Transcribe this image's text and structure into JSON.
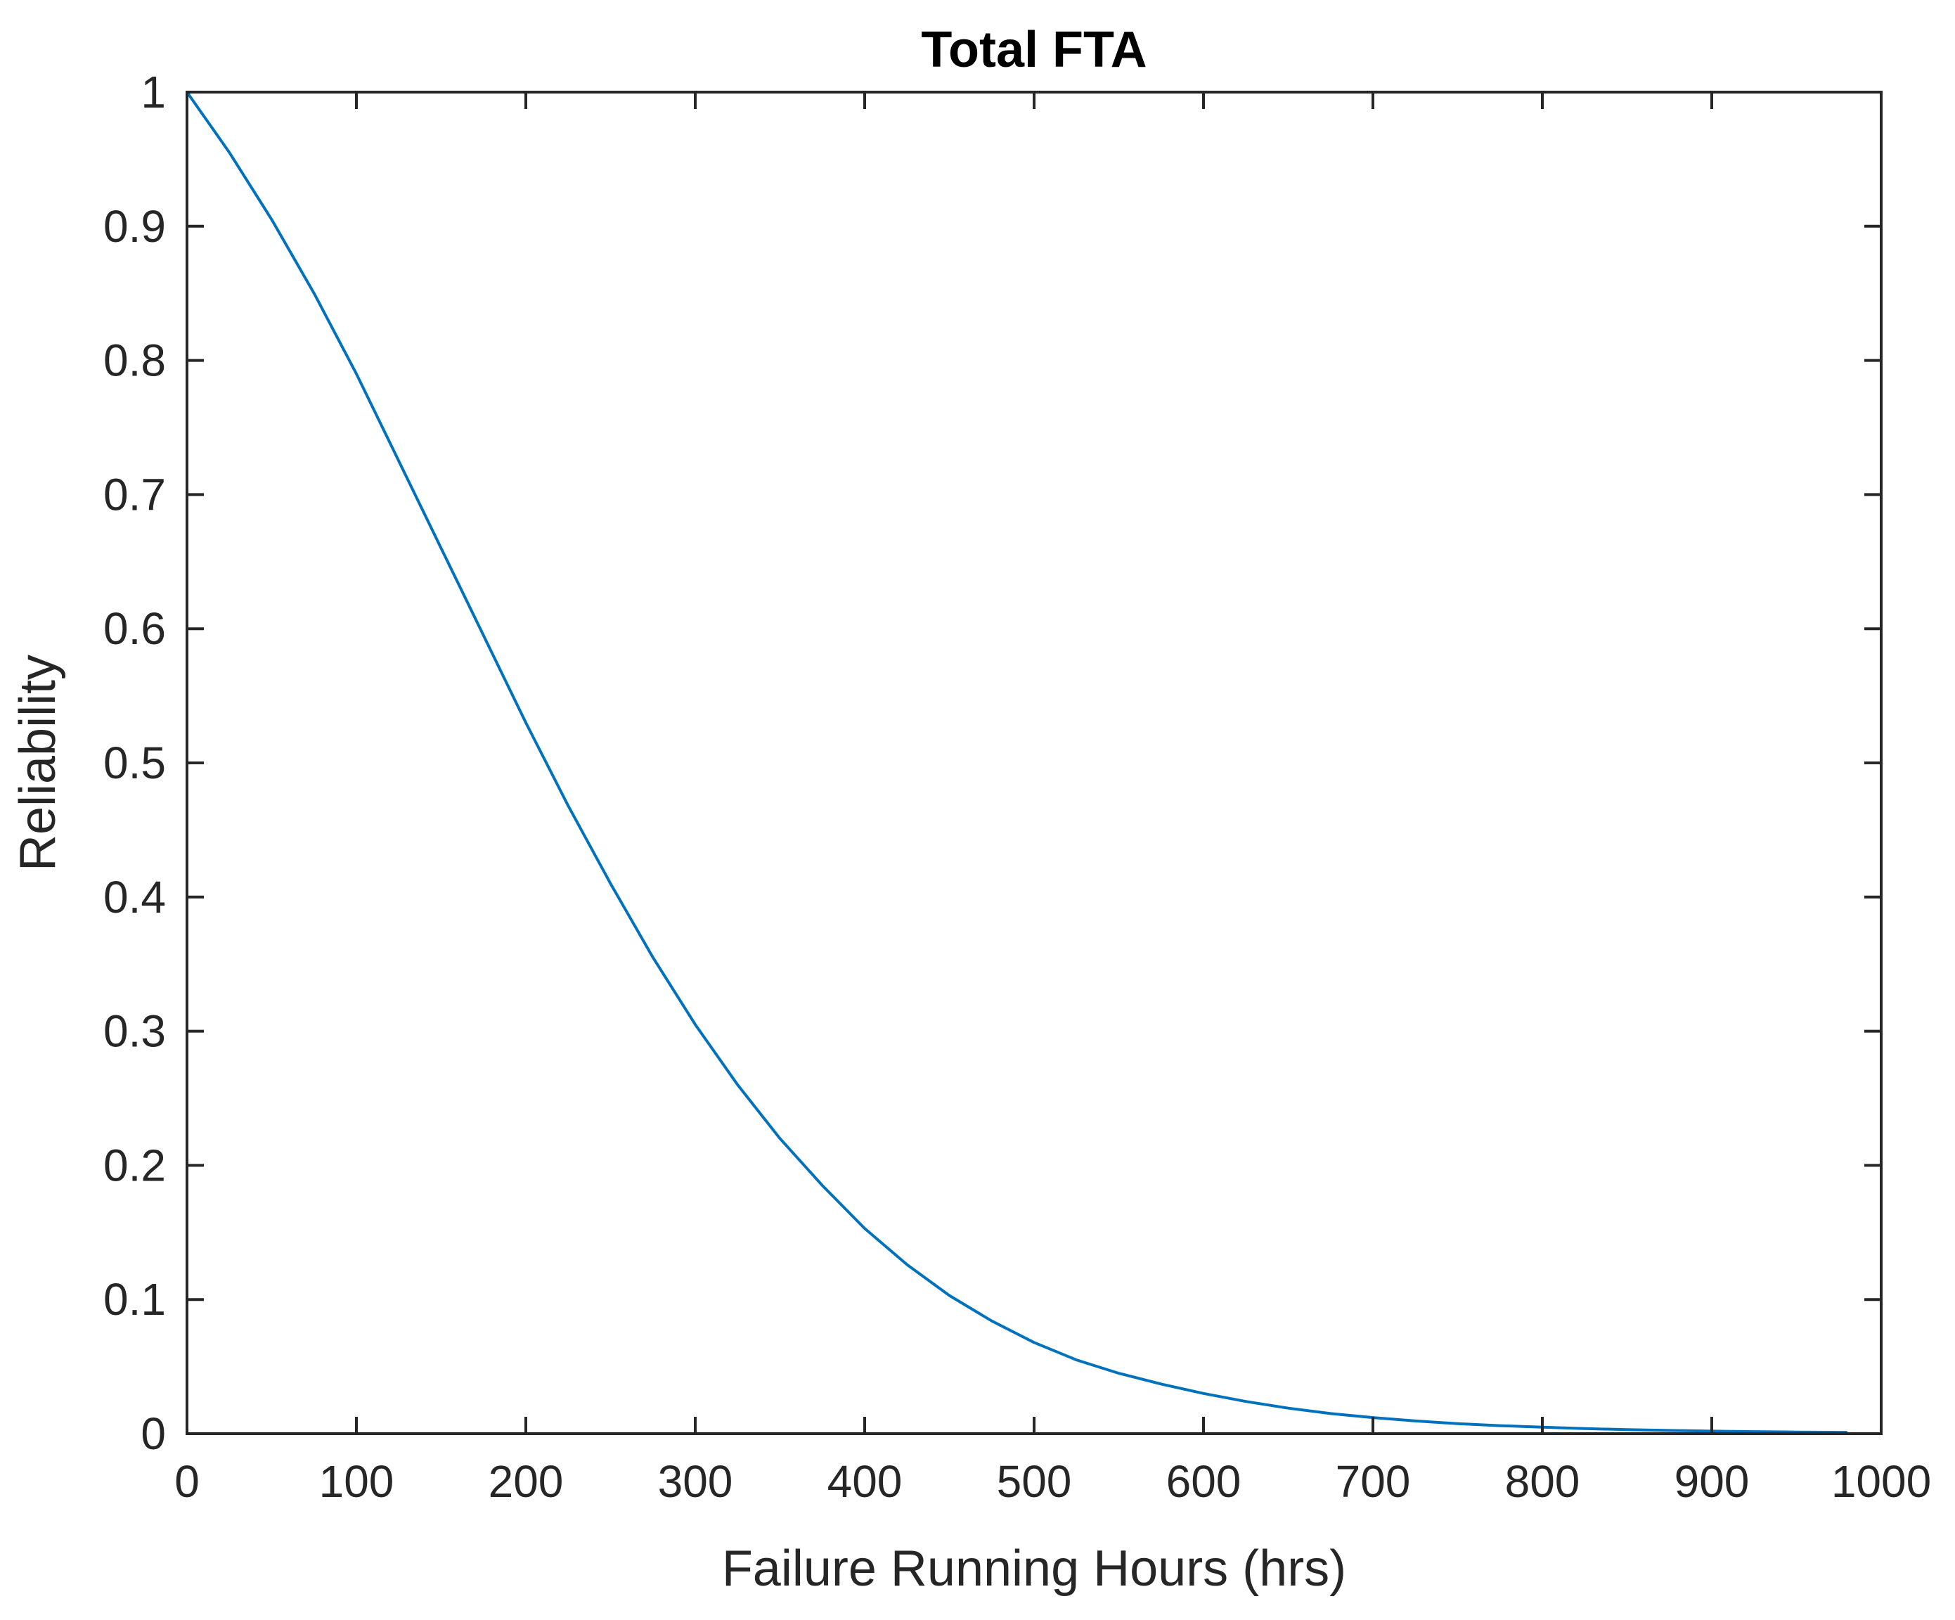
{
  "chart_data": {
    "type": "line",
    "title": "Total FTA",
    "xlabel": "Failure Running Hours (hrs)",
    "ylabel": "Reliability",
    "xlim": [
      0,
      1000
    ],
    "ylim": [
      0,
      1
    ],
    "x_ticks": [
      0,
      100,
      200,
      300,
      400,
      500,
      600,
      700,
      800,
      900,
      1000
    ],
    "x_tick_labels": [
      "0",
      "100",
      "200",
      "300",
      "400",
      "500",
      "600",
      "700",
      "800",
      "900",
      "1000"
    ],
    "y_ticks": [
      0,
      0.1,
      0.2,
      0.3,
      0.4,
      0.5,
      0.6,
      0.7,
      0.8,
      0.9,
      1
    ],
    "y_tick_labels": [
      "0",
      "0.1",
      "0.2",
      "0.3",
      "0.4",
      "0.5",
      "0.6",
      "0.7",
      "0.8",
      "0.9",
      "1"
    ],
    "grid": false,
    "line_color": "#0072BD",
    "series": [
      {
        "x": [
          0,
          25,
          50,
          75,
          100,
          125,
          150,
          175,
          200,
          225,
          250,
          275,
          300,
          325,
          350,
          375,
          400,
          425,
          450,
          475,
          500,
          525,
          550,
          575,
          600,
          625,
          650,
          675,
          700,
          725,
          750,
          775,
          800,
          825,
          850,
          875,
          900,
          925,
          950,
          980
        ],
        "y": [
          1.0,
          0.955,
          0.905,
          0.85,
          0.79,
          0.725,
          0.66,
          0.595,
          0.53,
          0.468,
          0.41,
          0.355,
          0.305,
          0.26,
          0.22,
          0.185,
          0.153,
          0.126,
          0.103,
          0.084,
          0.068,
          0.055,
          0.045,
          0.037,
          0.03,
          0.024,
          0.019,
          0.015,
          0.012,
          0.0095,
          0.0075,
          0.006,
          0.0048,
          0.0038,
          0.003,
          0.0024,
          0.0019,
          0.0015,
          0.0012,
          0.001
        ]
      }
    ]
  }
}
